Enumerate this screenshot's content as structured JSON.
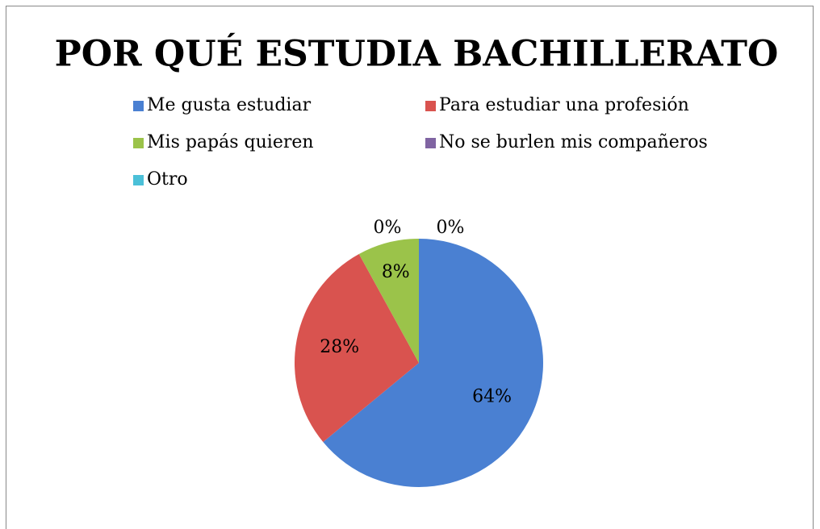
{
  "chart_data": {
    "type": "pie",
    "title": "POR QUÉ ESTUDIA BACHILLERATO",
    "categories": [
      "Me gusta estudiar",
      "Para estudiar una profesión",
      "Mis papás quieren",
      "No se burlen mis compañeros",
      "Otro"
    ],
    "values": [
      64,
      28,
      8,
      0,
      0
    ],
    "value_labels": [
      "64%",
      "28%",
      "8%",
      "0%",
      "0%"
    ],
    "colors": [
      "#4a80d2",
      "#d9534f",
      "#9bc34a",
      "#8064a2",
      "#4bc0d8"
    ],
    "legend": "top"
  }
}
